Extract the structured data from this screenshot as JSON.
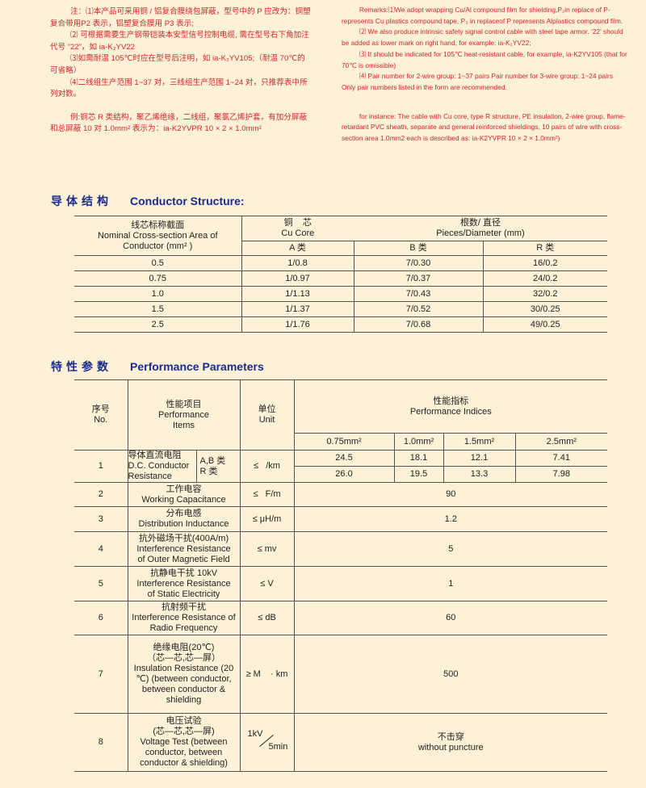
{
  "notes_cn": [
    "注：⑴本产品可采用铜 / 铝复合膜绕包屏蔽，型号中的 P 应改为：铜塑复合带用P2 表示，铝塑复合膜用 P3 表示;",
    "⑵ 可根据需要生产钢带铠装本安型信号控制电缆, 需在型号右下角加注代号 “22”，如 ia-K₂YV22",
    "⑶如需耐温 105℃时应在型号后注明，如 ia-K₂YV105;（耐温 70℃的可省略）",
    "⑷二线组生产范围 1~37 对，三线组生产范围 1~24 对，只推荐表中所列对数。",
    "例:铜芯 R 类结构，聚乙烯绝缘，二线组，聚氯乙烯护套，有加分屏蔽和总屏蔽 10 对 1.0mm² 表示为：ia-K2YVPR 10 × 2 × 1.0mm²"
  ],
  "notes_en": [
    "Remarks:⑴We adopt wrapping Cu/Al compound film for shielding,P₂in replace of P- represents Cu plastics compound tape, P₃ in replaceof P represents Alplastics compound film.",
    "⑵ We also produce intrinsic safety signal control cable with steel tape armor. ‘22’ should be added as lower mark on right hand, for example: ia-K₂YV22;",
    "⑶ It should be indicated for 105℃ heat-resistant cable, for example, ia-K2YV105 (that for 70℃ is omissible)",
    "⑷ Pair number for 2-wire group: 1~37 pairs Pair number for 3-wire group: 1~24 pairs Only pair numbers listed in the form are recommended.",
    "for instance: The cable with Cu core, type R structure, PE insulation, 2-wire group, flame-retardant PVC sheath, separate and general reinforced shieldings, 10 pairs of wire with cross-section area 1.0mm2  each is described as:  ia-K2YVPR 10 × 2 × 1.0mm²)"
  ],
  "conductor": {
    "title_cn": "导体结构",
    "title_en": "Conductor Structure:",
    "h_area_cn": "线芯标称截面",
    "h_area_en1": "Nominal Cross-section Area   of",
    "h_area_en2": "Conductor (mm² )",
    "h_core_cn": "铜    芯",
    "h_core_en": "Cu Core",
    "h_pieces_cn": "根数/ 直径",
    "h_pieces_en": "Pieces/Diameter (mm)",
    "h_a": "A 类",
    "h_b": "B 类",
    "h_r": "R 类",
    "rows": [
      [
        "0.5",
        "1/0.8",
        "7/0.30",
        "16/0.2"
      ],
      [
        "0.75",
        "1/0.97",
        "7/0.37",
        "24/0.2"
      ],
      [
        "1.0",
        "1/1.13",
        "7/0.43",
        "32/0.2"
      ],
      [
        "1.5",
        "1/1.37",
        "7/0.52",
        "30/0.25"
      ],
      [
        "2.5",
        "1/1.76",
        "7/0.68",
        "49/0.25"
      ]
    ]
  },
  "performance": {
    "title_cn": "特性参数",
    "title_en": "Performance Parameters",
    "h_no_cn": "序号",
    "h_no_en": "No.",
    "h_item_cn": "性能项目",
    "h_item_en1": "Performance",
    "h_item_en2": "Items",
    "h_unit_cn": "单位",
    "h_unit_en": "Unit",
    "h_ind_cn": "性能指标",
    "h_ind_en": "Performance Indices",
    "sizes": [
      "0.75mm²",
      "1.0mm²",
      "1.5mm²",
      "2.5mm²"
    ],
    "rows": [
      {
        "no": "1",
        "item": [
          "导体直流电阻",
          "D.C. Conductor",
          "Resistance"
        ],
        "sub": [
          "A,B 类",
          "R 类"
        ],
        "unit": "≤   /km",
        "values": [
          [
            "24.5",
            "18.1",
            "12.1",
            "7.41"
          ],
          [
            "26.0",
            "19.5",
            "13.3",
            "7.98"
          ]
        ]
      },
      {
        "no": "2",
        "item": [
          "工作电容",
          "Working Capacitance"
        ],
        "unit": "≤   F/m",
        "value": "90"
      },
      {
        "no": "3",
        "item": [
          "分布电感",
          "Distribution Inductance"
        ],
        "unit": "≤ μH/m",
        "value": "1.2"
      },
      {
        "no": "4",
        "item": [
          "抗外磁场干扰(400A/m)",
          "Interference Resistance",
          "of Outer Magnetic Field"
        ],
        "unit": "≤ mv",
        "value": "5"
      },
      {
        "no": "5",
        "item": [
          "抗静电干扰 10kV",
          "Interference Resistance",
          "of Static Electricity"
        ],
        "unit": "≤ V",
        "value": "1"
      },
      {
        "no": "6",
        "item": [
          "抗射频干扰",
          "Interference Resistance of",
          "Radio Frequency"
        ],
        "unit": "≤ dB",
        "value": "60"
      },
      {
        "no": "7",
        "item": [
          "绝缘电阻(20℃)",
          "（芯—芯,芯—屏）",
          "Insulation Resistance  (20",
          "℃) (between conductor,",
          "between conductor &",
          "shielding"
        ],
        "unit": "≥ M    · km",
        "value": "500"
      },
      {
        "no": "8",
        "item": [
          "电压试验",
          "(芯—芯,芯—屏)",
          "Voltage Test (between",
          "conductor, between",
          "conductor & shielding)"
        ],
        "unit_a": "1kV",
        "unit_b": "5min",
        "value_cn": "不击穿",
        "value_en": "without puncture"
      }
    ]
  },
  "colors": {
    "background": "#fdf1d7",
    "note_text": "#d8262e",
    "heading": "#1b2b8e"
  }
}
